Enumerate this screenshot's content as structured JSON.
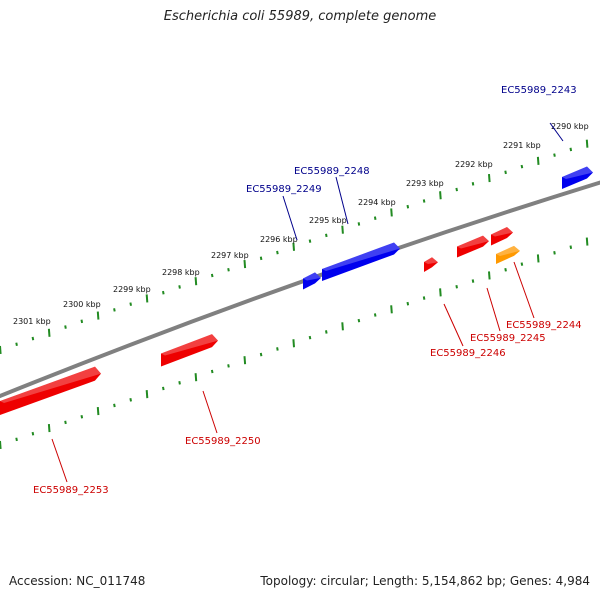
{
  "title": "Escherichia coli 55989, complete genome",
  "footer": {
    "accession": "Accession: NC_011748",
    "stats": "Topology: circular; Length: 5,154,862 bp; Genes: 4,984"
  },
  "colors": {
    "forward": "#0000ee",
    "reverse": "#ee0000",
    "highlight": "#ff9900",
    "backbone": "#808080",
    "ticks": "#228b22",
    "label_forward": "#00008b",
    "label_reverse": "#cc0000"
  },
  "scale_labels": [
    "2290 kbp",
    "2291 kbp",
    "2292 kbp",
    "2293 kbp",
    "2294 kbp",
    "2295 kbp",
    "2296 kbp",
    "2297 kbp",
    "2298 kbp",
    "2299 kbp",
    "2300 kbp",
    "2301 kbp"
  ],
  "genes": [
    {
      "name": "EC55989_2243",
      "strand": "forward"
    },
    {
      "name": "EC55989_2244",
      "strand": "reverse"
    },
    {
      "name": "EC55989_2245",
      "strand": "reverse"
    },
    {
      "name": "EC55989_2246",
      "strand": "reverse"
    },
    {
      "name": "EC55989_2248",
      "strand": "forward"
    },
    {
      "name": "EC55989_2249",
      "strand": "forward"
    },
    {
      "name": "EC55989_2250",
      "strand": "reverse"
    },
    {
      "name": "EC55989_2253",
      "strand": "reverse"
    }
  ]
}
